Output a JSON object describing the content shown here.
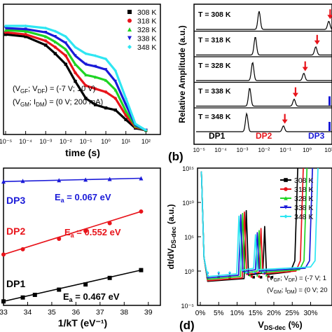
{
  "colors": {
    "308 K": "#000000",
    "318 K": "#e8141b",
    "328 K": "#1fd424",
    "338 K": "#1a1ad8",
    "348 K": "#2ee6f2",
    "dp1": "#000000",
    "dp2": "#e8141b",
    "dp3": "#1a1ad8"
  },
  "chart_data": [
    {
      "id": "a",
      "type": "line",
      "xlabel": "time (s)",
      "x_scale": "log",
      "xlim": [
        1e-05,
        300
      ],
      "x_ticks": [
        "10⁻⁵",
        "10⁻⁴",
        "10⁻³",
        "10⁻²",
        "10⁻¹",
        "10⁰",
        "10¹",
        "10²"
      ],
      "legend": [
        "308 K",
        "318 K",
        "328 K",
        "338 K",
        "348 K"
      ],
      "legend_position": "top-right",
      "annotation": [
        "(V",
        "GF",
        "; V",
        "DF",
        ") = (-7 V; 10 V)",
        "(V",
        "GM",
        "; I",
        "DM",
        ") = (0 V; 200 mA)"
      ],
      "series": [
        {
          "name": "308 K",
          "x": [
            1e-05,
            0.0001,
            0.001,
            0.003,
            0.01,
            0.03,
            0.1,
            0.3,
            1,
            3,
            10,
            30,
            100
          ],
          "y": [
            0.9,
            0.88,
            0.8,
            0.72,
            0.62,
            0.46,
            0.3,
            0.24,
            0.21,
            0.19,
            0.1,
            0.02,
            0.0
          ]
        },
        {
          "name": "318 K",
          "x": [
            1e-05,
            0.0001,
            0.001,
            0.003,
            0.01,
            0.03,
            0.1,
            0.3,
            1,
            3,
            10,
            30,
            100
          ],
          "y": [
            0.92,
            0.9,
            0.84,
            0.78,
            0.7,
            0.54,
            0.42,
            0.39,
            0.36,
            0.3,
            0.14,
            0.03,
            0.0
          ]
        },
        {
          "name": "328 K",
          "x": [
            1e-05,
            0.0001,
            0.001,
            0.003,
            0.01,
            0.03,
            0.1,
            0.3,
            1,
            3,
            10,
            30,
            100
          ],
          "y": [
            0.94,
            0.93,
            0.88,
            0.83,
            0.76,
            0.62,
            0.52,
            0.5,
            0.47,
            0.38,
            0.18,
            0.04,
            0.0
          ]
        },
        {
          "name": "338 K",
          "x": [
            1e-05,
            0.0001,
            0.001,
            0.003,
            0.01,
            0.03,
            0.1,
            0.3,
            1,
            3,
            10,
            30,
            100
          ],
          "y": [
            0.96,
            0.95,
            0.92,
            0.88,
            0.82,
            0.7,
            0.62,
            0.6,
            0.57,
            0.46,
            0.24,
            0.05,
            0.0
          ]
        },
        {
          "name": "348 K",
          "x": [
            1e-05,
            0.0001,
            0.001,
            0.003,
            0.01,
            0.03,
            0.1,
            0.3,
            1,
            3,
            10,
            30,
            100
          ],
          "y": [
            0.98,
            0.98,
            0.96,
            0.93,
            0.88,
            0.78,
            0.72,
            0.7,
            0.67,
            0.56,
            0.3,
            0.06,
            0.0
          ]
        }
      ]
    },
    {
      "id": "b",
      "panel_label": "(b)",
      "type": "line",
      "ylabel": "Relative Amplitude (a.u.)",
      "x_scale": "log",
      "x_ticks": [
        "10⁻⁵",
        "10⁻⁴",
        "10⁻³",
        "10⁻²",
        "10⁻¹",
        "10⁰",
        "10¹"
      ],
      "peak_labels": [
        "DP1",
        "DP2",
        "DP3"
      ],
      "rows": [
        {
          "label": "T = 308 K",
          "peaks": [
            {
              "x": 0.006,
              "h": 1.0
            },
            {
              "x": 10,
              "h": 0.45
            }
          ]
        },
        {
          "label": "T = 318 K",
          "peaks": [
            {
              "x": 0.004,
              "h": 1.0
            },
            {
              "x": 2.5,
              "h": 0.45
            }
          ]
        },
        {
          "label": "T = 328 K",
          "peaks": [
            {
              "x": 0.003,
              "h": 1.0
            },
            {
              "x": 0.7,
              "h": 0.4
            }
          ]
        },
        {
          "label": "T = 338 K",
          "peaks": [
            {
              "x": 0.0022,
              "h": 1.0
            },
            {
              "x": 0.25,
              "h": 0.38
            }
          ]
        },
        {
          "label": "T = 348 K",
          "peaks": [
            {
              "x": 0.0016,
              "h": 1.0
            },
            {
              "x": 0.08,
              "h": 0.32
            }
          ]
        }
      ]
    },
    {
      "id": "c",
      "type": "scatter",
      "xlabel": "1/kT (eV⁻¹)",
      "xlim": [
        33,
        39.5
      ],
      "x_ticks": [
        "33",
        "34",
        "35",
        "36",
        "37",
        "38",
        "39"
      ],
      "series": [
        {
          "name": "DP3",
          "energy": "E",
          "energy_sub": "a",
          "energy_value": " = 0.067 eV",
          "x": [
            33.0,
            33.8,
            35.3,
            36.4,
            37.4,
            38.7
          ],
          "y": [
            0.94,
            0.945,
            0.95,
            0.955,
            0.96,
            0.965
          ]
        },
        {
          "name": "DP2",
          "energy": "E",
          "energy_sub": "a",
          "energy_value": " = 0.552 eV",
          "x": [
            33.0,
            33.8,
            35.3,
            36.4,
            37.4,
            38.7
          ],
          "y": [
            0.38,
            0.42,
            0.5,
            0.56,
            0.62,
            0.71
          ]
        },
        {
          "name": "DP1",
          "energy": "E",
          "energy_sub": "a",
          "energy_value": " = 0.467 eV",
          "x": [
            33.0,
            33.8,
            34.3,
            35.3,
            36.4,
            37.4,
            38.7
          ],
          "y": [
            0.02,
            0.05,
            0.07,
            0.11,
            0.15,
            0.2,
            0.26
          ]
        }
      ]
    },
    {
      "id": "d",
      "panel_label": "(d)",
      "type": "line",
      "ylabel": "dt/dV",
      "ylabel_sub": "DS-dec",
      "ylabel_unit": " (a.u.)",
      "xlabel": "V",
      "xlabel_sub": "DS-dec",
      "xlabel_unit": " (%)",
      "y_scale": "log",
      "ylim": [
        1e-05,
        1000000000000000.0
      ],
      "y_ticks": [
        "10¹⁵",
        "10¹⁰",
        "10⁵",
        "10⁰",
        "10⁻⁵"
      ],
      "x_ticks": [
        "0%",
        "5%",
        "10%",
        "15%",
        "20%",
        "25%",
        "30%"
      ],
      "legend": [
        "308 K",
        "318 K",
        "328 K",
        "338 K",
        "348 K"
      ],
      "legend_position": "top-right",
      "annotation": [
        "(V",
        "GF",
        "; V",
        "DF",
        ") = (-7 V; 1",
        "(V",
        "GM",
        "; I",
        "DM",
        ") = (0 V; 20"
      ],
      "spike_positions_percent": [
        {
          "name": "308 K",
          "x": [
            0.3,
            12.5,
            17.5,
            26.5
          ]
        },
        {
          "name": "318 K",
          "x": [
            0.3,
            12.0,
            16.5,
            28.0
          ]
        },
        {
          "name": "328 K",
          "x": [
            0.3,
            11.5,
            16.0,
            29.0
          ]
        },
        {
          "name": "338 K",
          "x": [
            0.3,
            11.0,
            15.5,
            30.5
          ]
        },
        {
          "name": "348 K",
          "x": [
            0.3,
            10.5,
            15.0,
            32.0
          ]
        }
      ]
    }
  ]
}
